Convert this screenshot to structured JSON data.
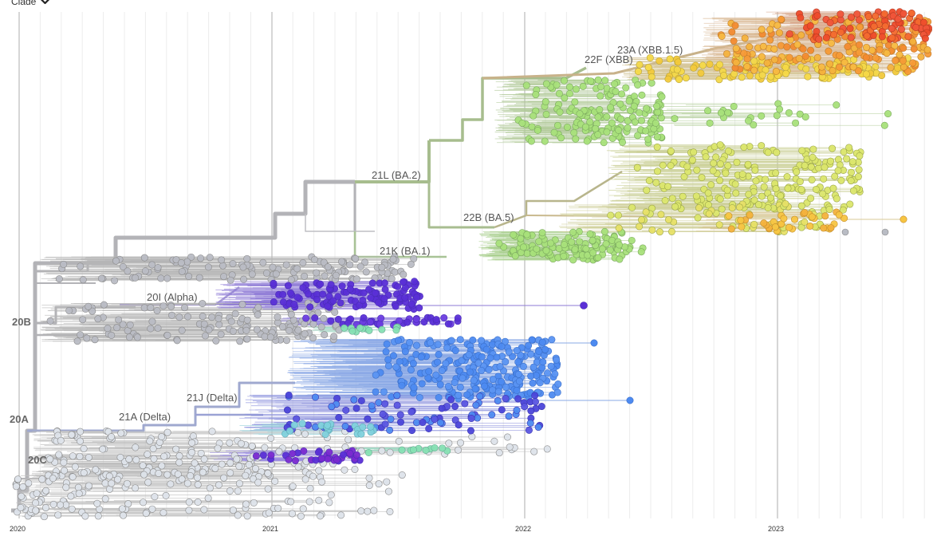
{
  "controls": {
    "color_by_label": "Clade",
    "chevron_icon": "chevron-down-icon"
  },
  "clade_labels": [
    {
      "id": "20A",
      "text": "20A",
      "kind": "root"
    },
    {
      "id": "20B",
      "text": "20B",
      "kind": "root"
    },
    {
      "id": "20C",
      "text": "20C",
      "kind": "root"
    },
    {
      "id": "20I",
      "text": "20I (Alpha)",
      "kind": "named"
    },
    {
      "id": "21A",
      "text": "21A (Delta)",
      "kind": "named"
    },
    {
      "id": "21J",
      "text": "21J (Delta)",
      "kind": "named"
    },
    {
      "id": "21K",
      "text": "21K (BA.1)",
      "kind": "named"
    },
    {
      "id": "21L",
      "text": "21L (BA.2)",
      "kind": "named"
    },
    {
      "id": "22B",
      "text": "22B (BA.5)",
      "kind": "named"
    },
    {
      "id": "22F",
      "text": "22F (XBB)",
      "kind": "named"
    },
    {
      "id": "23A",
      "text": "23A (XBB.1.5)",
      "kind": "named"
    }
  ],
  "axis": {
    "ticks": [
      "2020",
      "2021",
      "2022",
      "2023"
    ]
  },
  "colors": {
    "grey_branch": "#b3b3b7",
    "grey_tip": "#b9bcc4",
    "light_tip": "#dde3ea",
    "alpha": "#5a2fd6",
    "delta_blue": "#4d8af0",
    "delta_dark": "#4b44d9",
    "cyan": "#7fd1dc",
    "teal": "#86e0b3",
    "ba1": "#a8e07a",
    "ba5": "#dbe66b",
    "xbb": "#f3b23d",
    "xbb15": "#ee4b2b",
    "yellow": "#f5d947"
  }
}
